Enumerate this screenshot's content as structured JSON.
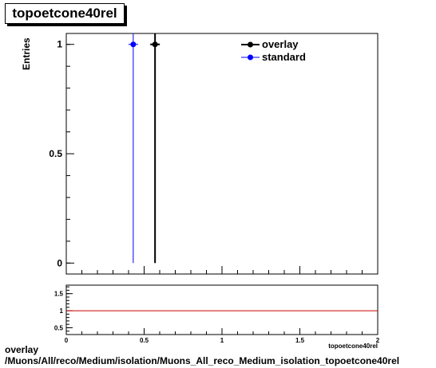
{
  "histogram_title": "topoetcone40rel",
  "footer": {
    "line1": "overlay",
    "line2": "/Muons/All/reco/Medium/isolation/Muons_All_reco_Medium_isolation_topoetcone40rel"
  },
  "colors": {
    "overlay": "#000000",
    "standard": "#0000ff",
    "ratio_line": "#cc0000"
  },
  "chart_data": [
    {
      "type": "scatter",
      "title": "topoetcone40rel",
      "xlabel": "topoetcone40rel",
      "ylabel": "Entries",
      "xlim": [
        0,
        2
      ],
      "ylim": [
        -0.05,
        1.05
      ],
      "yticks": [
        0,
        0.5,
        1
      ],
      "ytick_labels": [
        "0",
        "0.5",
        "1"
      ],
      "legend_position": "top-right",
      "series": [
        {
          "name": "overlay",
          "x": [
            0.57
          ],
          "y": [
            1
          ],
          "yerr": [
            1
          ],
          "color": "#000000"
        },
        {
          "name": "standard",
          "x": [
            0.43
          ],
          "y": [
            1
          ],
          "yerr": [
            1
          ],
          "color": "#0000ff"
        }
      ]
    },
    {
      "type": "line",
      "xlabel": "topoetcone40rel",
      "xlim": [
        0,
        2
      ],
      "ylim": [
        0.3,
        1.75
      ],
      "xticks": [
        0,
        0.5,
        1,
        1.5,
        2
      ],
      "xtick_labels": [
        "0",
        "0.5",
        "1",
        "1.5",
        "2"
      ],
      "yticks": [
        0.5,
        1,
        1.5
      ],
      "ytick_labels": [
        "0.5",
        "1",
        "1.5"
      ],
      "series": [
        {
          "x": [
            0,
            2
          ],
          "y": [
            1,
            1
          ],
          "color": "#cc0000"
        }
      ]
    }
  ]
}
